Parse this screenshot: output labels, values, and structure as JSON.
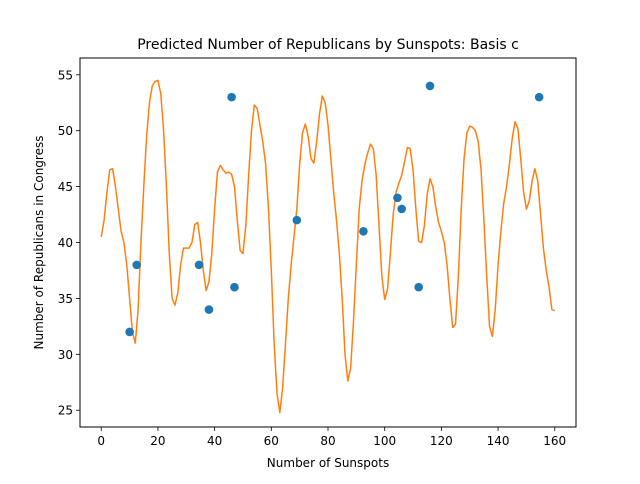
{
  "chart_data": {
    "type": "scatter",
    "title": "Predicted Number of Republicans by Sunspots: Basis c",
    "xlabel": "Number of Sunspots",
    "ylabel": "Number of Republicans in Congress",
    "xlim": [
      -7.5,
      167.5
    ],
    "ylim": [
      23.5,
      56.5
    ],
    "xticks": [
      0,
      20,
      40,
      60,
      80,
      100,
      120,
      140,
      160
    ],
    "yticks": [
      25,
      30,
      35,
      40,
      45,
      50,
      55
    ],
    "grid": false,
    "legend": "none",
    "series": [
      {
        "kind": "scatter",
        "color": "#1f77b4",
        "points": [
          {
            "x": 10,
            "y": 32
          },
          {
            "x": 12.5,
            "y": 38
          },
          {
            "x": 34.5,
            "y": 38
          },
          {
            "x": 38,
            "y": 34
          },
          {
            "x": 46,
            "y": 53
          },
          {
            "x": 47,
            "y": 36
          },
          {
            "x": 69,
            "y": 42
          },
          {
            "x": 92.5,
            "y": 41
          },
          {
            "x": 104.5,
            "y": 44
          },
          {
            "x": 106,
            "y": 43
          },
          {
            "x": 112,
            "y": 36
          },
          {
            "x": 116,
            "y": 54
          },
          {
            "x": 154.5,
            "y": 53
          }
        ]
      },
      {
        "kind": "line",
        "color": "#ff7f0e",
        "points": [
          {
            "x": 0,
            "y": 40.5
          },
          {
            "x": 1,
            "y": 42
          },
          {
            "x": 2,
            "y": 44.5
          },
          {
            "x": 3,
            "y": 46.5
          },
          {
            "x": 4,
            "y": 46.6
          },
          {
            "x": 5,
            "y": 45
          },
          {
            "x": 6,
            "y": 43
          },
          {
            "x": 7,
            "y": 41
          },
          {
            "x": 8,
            "y": 40
          },
          {
            "x": 9,
            "y": 38
          },
          {
            "x": 10,
            "y": 35
          },
          {
            "x": 11,
            "y": 32
          },
          {
            "x": 12,
            "y": 31
          },
          {
            "x": 13,
            "y": 34
          },
          {
            "x": 14,
            "y": 40
          },
          {
            "x": 15,
            "y": 45
          },
          {
            "x": 16,
            "y": 49.5
          },
          {
            "x": 17,
            "y": 52.5
          },
          {
            "x": 18,
            "y": 54
          },
          {
            "x": 19,
            "y": 54.4
          },
          {
            "x": 20,
            "y": 54.5
          },
          {
            "x": 21,
            "y": 53.3
          },
          {
            "x": 22,
            "y": 50
          },
          {
            "x": 23,
            "y": 45
          },
          {
            "x": 24,
            "y": 39
          },
          {
            "x": 25,
            "y": 35
          },
          {
            "x": 26,
            "y": 34.4
          },
          {
            "x": 27,
            "y": 35.5
          },
          {
            "x": 28,
            "y": 38
          },
          {
            "x": 29,
            "y": 39.5
          },
          {
            "x": 30,
            "y": 39.5
          },
          {
            "x": 31,
            "y": 39.5
          },
          {
            "x": 32,
            "y": 40
          },
          {
            "x": 33,
            "y": 41.6
          },
          {
            "x": 34,
            "y": 41.8
          },
          {
            "x": 35,
            "y": 40
          },
          {
            "x": 36,
            "y": 37.5
          },
          {
            "x": 37,
            "y": 35.7
          },
          {
            "x": 38,
            "y": 36.5
          },
          {
            "x": 39,
            "y": 39
          },
          {
            "x": 40,
            "y": 43
          },
          {
            "x": 41,
            "y": 46.3
          },
          {
            "x": 42,
            "y": 46.9
          },
          {
            "x": 43,
            "y": 46.5
          },
          {
            "x": 44,
            "y": 46.2
          },
          {
            "x": 45,
            "y": 46.3
          },
          {
            "x": 46,
            "y": 46.1
          },
          {
            "x": 47,
            "y": 45
          },
          {
            "x": 48,
            "y": 42
          },
          {
            "x": 49,
            "y": 39.3
          },
          {
            "x": 50,
            "y": 39
          },
          {
            "x": 51,
            "y": 41.5
          },
          {
            "x": 52,
            "y": 46
          },
          {
            "x": 53,
            "y": 50
          },
          {
            "x": 54,
            "y": 52.3
          },
          {
            "x": 55,
            "y": 52
          },
          {
            "x": 56,
            "y": 50.5
          },
          {
            "x": 57,
            "y": 49
          },
          {
            "x": 58,
            "y": 47
          },
          {
            "x": 59,
            "y": 43
          },
          {
            "x": 60,
            "y": 37.5
          },
          {
            "x": 61,
            "y": 31
          },
          {
            "x": 62,
            "y": 26.5
          },
          {
            "x": 63,
            "y": 24.8
          },
          {
            "x": 64,
            "y": 27
          },
          {
            "x": 65,
            "y": 31
          },
          {
            "x": 66,
            "y": 35
          },
          {
            "x": 67,
            "y": 38
          },
          {
            "x": 68,
            "y": 40.5
          },
          {
            "x": 69,
            "y": 43
          },
          {
            "x": 70,
            "y": 47
          },
          {
            "x": 71,
            "y": 49.8
          },
          {
            "x": 72,
            "y": 50.6
          },
          {
            "x": 73,
            "y": 49.5
          },
          {
            "x": 74,
            "y": 47.5
          },
          {
            "x": 75,
            "y": 47.1
          },
          {
            "x": 76,
            "y": 49
          },
          {
            "x": 77,
            "y": 51.5
          },
          {
            "x": 78,
            "y": 53.1
          },
          {
            "x": 79,
            "y": 52.5
          },
          {
            "x": 80,
            "y": 50.5
          },
          {
            "x": 81,
            "y": 47.5
          },
          {
            "x": 82,
            "y": 44.5
          },
          {
            "x": 83,
            "y": 42
          },
          {
            "x": 84,
            "y": 39
          },
          {
            "x": 85,
            "y": 35
          },
          {
            "x": 86,
            "y": 30
          },
          {
            "x": 87,
            "y": 27.6
          },
          {
            "x": 88,
            "y": 28.8
          },
          {
            "x": 89,
            "y": 33
          },
          {
            "x": 90,
            "y": 38
          },
          {
            "x": 91,
            "y": 43
          },
          {
            "x": 92,
            "y": 45.5
          },
          {
            "x": 93,
            "y": 47
          },
          {
            "x": 94,
            "y": 48
          },
          {
            "x": 95,
            "y": 48.8
          },
          {
            "x": 96,
            "y": 48.4
          },
          {
            "x": 97,
            "y": 46
          },
          {
            "x": 98,
            "y": 41.5
          },
          {
            "x": 99,
            "y": 37
          },
          {
            "x": 100,
            "y": 34.9
          },
          {
            "x": 101,
            "y": 35.8
          },
          {
            "x": 102,
            "y": 39
          },
          {
            "x": 103,
            "y": 42.5
          },
          {
            "x": 104,
            "y": 44.5
          },
          {
            "x": 105,
            "y": 45.3
          },
          {
            "x": 106,
            "y": 46
          },
          {
            "x": 107,
            "y": 47.2
          },
          {
            "x": 108,
            "y": 48.5
          },
          {
            "x": 109,
            "y": 48.4
          },
          {
            "x": 110,
            "y": 46.5
          },
          {
            "x": 111,
            "y": 43
          },
          {
            "x": 112,
            "y": 40.1
          },
          {
            "x": 113,
            "y": 40
          },
          {
            "x": 114,
            "y": 41.5
          },
          {
            "x": 115,
            "y": 44.3
          },
          {
            "x": 116,
            "y": 45.7
          },
          {
            "x": 117,
            "y": 45
          },
          {
            "x": 118,
            "y": 43.2
          },
          {
            "x": 119,
            "y": 41.8
          },
          {
            "x": 120,
            "y": 41
          },
          {
            "x": 121,
            "y": 40
          },
          {
            "x": 122,
            "y": 38
          },
          {
            "x": 123,
            "y": 35
          },
          {
            "x": 124,
            "y": 32.4
          },
          {
            "x": 125,
            "y": 32.7
          },
          {
            "x": 126,
            "y": 37
          },
          {
            "x": 127,
            "y": 43
          },
          {
            "x": 128,
            "y": 47.5
          },
          {
            "x": 129,
            "y": 49.8
          },
          {
            "x": 130,
            "y": 50.4
          },
          {
            "x": 131,
            "y": 50.3
          },
          {
            "x": 132,
            "y": 50
          },
          {
            "x": 133,
            "y": 49
          },
          {
            "x": 134,
            "y": 46.5
          },
          {
            "x": 135,
            "y": 42
          },
          {
            "x": 136,
            "y": 37
          },
          {
            "x": 137,
            "y": 32.5
          },
          {
            "x": 138,
            "y": 31.6
          },
          {
            "x": 139,
            "y": 34
          },
          {
            "x": 140,
            "y": 38
          },
          {
            "x": 141,
            "y": 41
          },
          {
            "x": 142,
            "y": 43.5
          },
          {
            "x": 143,
            "y": 45
          },
          {
            "x": 144,
            "y": 47
          },
          {
            "x": 145,
            "y": 49.3
          },
          {
            "x": 146,
            "y": 50.8
          },
          {
            "x": 147,
            "y": 50.2
          },
          {
            "x": 148,
            "y": 47.5
          },
          {
            "x": 149,
            "y": 44.5
          },
          {
            "x": 150,
            "y": 43
          },
          {
            "x": 151,
            "y": 43.7
          },
          {
            "x": 152,
            "y": 45.5
          },
          {
            "x": 153,
            "y": 46.6
          },
          {
            "x": 154,
            "y": 45.5
          },
          {
            "x": 155,
            "y": 42.5
          },
          {
            "x": 156,
            "y": 39.5
          },
          {
            "x": 157,
            "y": 37.5
          },
          {
            "x": 158,
            "y": 36
          },
          {
            "x": 159,
            "y": 34
          },
          {
            "x": 160,
            "y": 33.9
          }
        ]
      }
    ]
  }
}
